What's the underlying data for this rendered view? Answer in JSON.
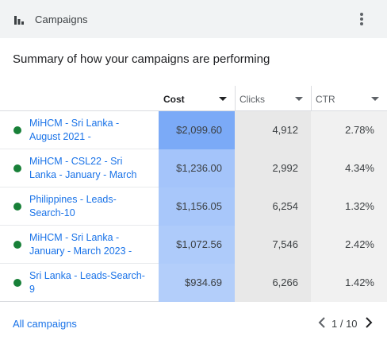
{
  "header": {
    "title": "Campaigns"
  },
  "subtitle": "Summary of how your campaigns are performing",
  "columns": [
    {
      "label": "Cost",
      "active": true
    },
    {
      "label": "Clicks",
      "active": false
    },
    {
      "label": "CTR",
      "active": false
    }
  ],
  "rows": [
    {
      "name": "MiHCM - Sri Lanka - August 2021 -",
      "cost": "$2,099.60",
      "clicks": "4,912",
      "ctr": "2.78%",
      "status_color": "#188038",
      "cost_color": "#7baaf7"
    },
    {
      "name": "MiHCM - CSL22 - Sri Lanka - January - March",
      "cost": "$1,236.00",
      "clicks": "2,992",
      "ctr": "4.34%",
      "status_color": "#188038",
      "cost_color": "#a4c4fa"
    },
    {
      "name": "Philippines - Leads-Search-10",
      "cost": "$1,156.05",
      "clicks": "6,254",
      "ctr": "1.32%",
      "status_color": "#188038",
      "cost_color": "#a8c7fa"
    },
    {
      "name": "MiHCM - Sri Lanka - January - March 2023 -",
      "cost": "$1,072.56",
      "clicks": "7,546",
      "ctr": "2.42%",
      "status_color": "#188038",
      "cost_color": "#aecbfa"
    },
    {
      "name": "Sri Lanka - Leads-Search-9",
      "cost": "$934.69",
      "clicks": "6,266",
      "ctr": "1.42%",
      "status_color": "#188038",
      "cost_color": "#b3cefa"
    }
  ],
  "footer": {
    "all_campaigns": "All campaigns",
    "page": "1 / 10"
  }
}
